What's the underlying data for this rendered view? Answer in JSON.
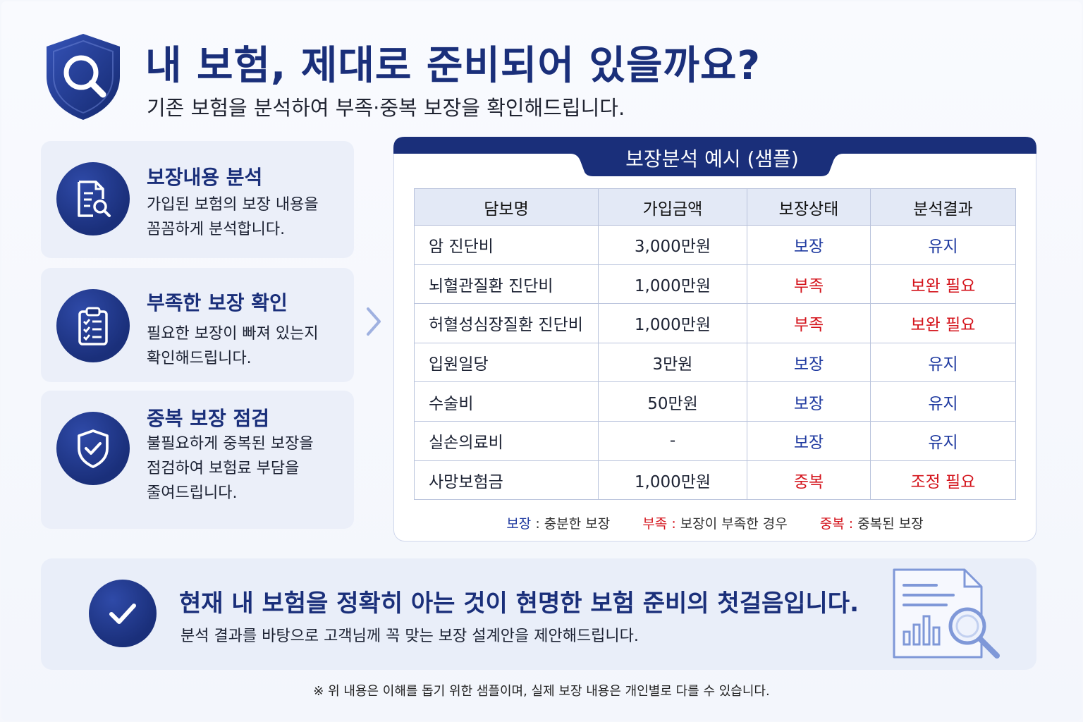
{
  "header": {
    "title": "내 보험, 제대로 준비되어 있을까요?",
    "subtitle": "기존 보험을 분석하여 부족·중복 보장을 확인해드립니다."
  },
  "features": [
    {
      "icon": "document-search-icon",
      "title": "보장내용 분석",
      "lines": [
        "가입된 보험의 보장 내용을",
        "꼼꼼하게 분석합니다."
      ]
    },
    {
      "icon": "clipboard-checklist-icon",
      "title": "부족한 보장 확인",
      "lines": [
        "필요한 보장이 빠져 있는지",
        "확인해드립니다."
      ]
    },
    {
      "icon": "shield-check-icon",
      "title": "중복 보장 점검",
      "lines": [
        "불필요하게 중복된 보장을",
        "점검하여 보험료 부담을",
        "줄여드립니다."
      ]
    }
  ],
  "table": {
    "title": "보장분석 예시 (샘플)",
    "headers": [
      "담보명",
      "가입금액",
      "보장상태",
      "분석결과"
    ],
    "rows": [
      {
        "name": "암 진단비",
        "amount": "3,000만원",
        "status": "보장",
        "result": "유지",
        "status_type": "ok"
      },
      {
        "name": "뇌혈관질환 진단비",
        "amount": "1,000만원",
        "status": "부족",
        "result": "보완 필요",
        "status_type": "warn"
      },
      {
        "name": "허혈성심장질환 진단비",
        "amount": "1,000만원",
        "status": "부족",
        "result": "보완 필요",
        "status_type": "warn"
      },
      {
        "name": "입원일당",
        "amount": "3만원",
        "status": "보장",
        "result": "유지",
        "status_type": "ok"
      },
      {
        "name": "수술비",
        "amount": "50만원",
        "status": "보장",
        "result": "유지",
        "status_type": "ok"
      },
      {
        "name": "실손의료비",
        "amount": "-",
        "status": "보장",
        "result": "유지",
        "status_type": "ok"
      },
      {
        "name": "사망보험금",
        "amount": "1,000만원",
        "status": "중복",
        "result": "조정 필요",
        "status_type": "warn"
      }
    ],
    "legend": [
      {
        "key": "보장",
        "sep": " : ",
        "desc": "충분한 보장",
        "type": "ok"
      },
      {
        "key": "부족",
        "sep": " : ",
        "desc": "보장이 부족한 경우",
        "type": "warn"
      },
      {
        "key": "중복",
        "sep": " : ",
        "desc": "중복된 보장",
        "type": "warn"
      }
    ]
  },
  "banner": {
    "title": "현재 내 보험을 정확히 아는 것이 현명한 보험 준비의 첫걸음입니다.",
    "subtitle": "분석 결과를 바탕으로 고객님께 꼭 맞는 보장 설계안을 제안해드립니다.",
    "icon": "report-search-icon"
  },
  "footnote": "※ 위 내용은 이해를 돕기 위한 샘플이며, 실제 보장 내용은 개인별로 다를 수 있습니다.",
  "colors": {
    "brand": "#1a2f7a",
    "ok": "#1f3aa0",
    "warn": "#d4141c",
    "card_bg": "#ebeff9"
  }
}
